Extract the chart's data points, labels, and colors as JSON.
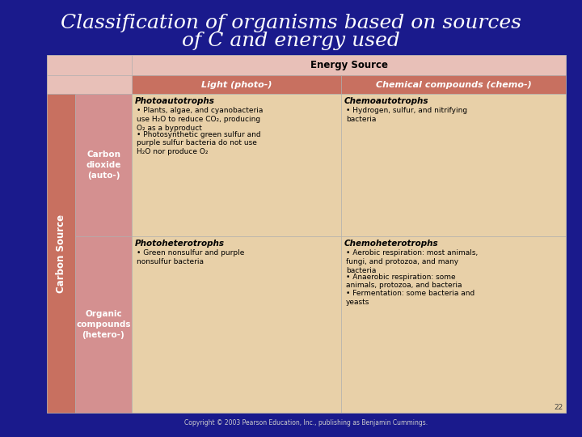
{
  "title_line1": "Classification of organisms based on sources",
  "title_line2": "of C and energy used",
  "title_color": "#FFFFFF",
  "title_fontsize": 18,
  "bg_color": "#1a1a8c",
  "slide_number": "22",
  "header_energy_source": "Energy Source",
  "header_light": "Light (photo-)",
  "header_chemical": "Chemical compounds (chemo-)",
  "row_header_carbon": "Carbon Source",
  "row_label_auto": "Carbon\ndioxide\n(auto-)",
  "row_label_hetero": "Organic\ncompounds\n(hetero-)",
  "header_top_bg": "#e8c0b8",
  "sub_header_bg": "#c87060",
  "carbon_source_bg": "#c87060",
  "row_label_bg": "#d49090",
  "cell_bg": "#e8d0a8",
  "table_border": "#aaaaaa",
  "photoauto_title": "Photoautotrophs",
  "photoauto_bullets": [
    "Plants, algae, and cyanobacteria\nuse H₂O to reduce CO₂, producing\nO₂ as a byproduct",
    "Photosynthetic green sulfur and\npurple sulfur bacteria do not use\nH₂O nor produce O₂"
  ],
  "chemoauto_title": "Chemoautotrophs",
  "chemoauto_bullets": [
    "Hydrogen, sulfur, and nitrifying\nbacteria"
  ],
  "photohete_title": "Photoheterotrophs",
  "photohete_bullets": [
    "Green nonsulfur and purple\nnonsulfur bacteria"
  ],
  "chemohete_title": "Chemoheterotrophs",
  "chemohete_bullets": [
    "Aerobic respiration: most animals,\nfungi, and protozoa, and many\nbacteria",
    "Anaerobic respiration: some\nanimals, protozoa, and bacteria",
    "Fermentation: some bacteria and\nyeasts"
  ],
  "copyright": "Copyright © 2003 Pearson Education, Inc., publishing as Benjamin Cummings."
}
